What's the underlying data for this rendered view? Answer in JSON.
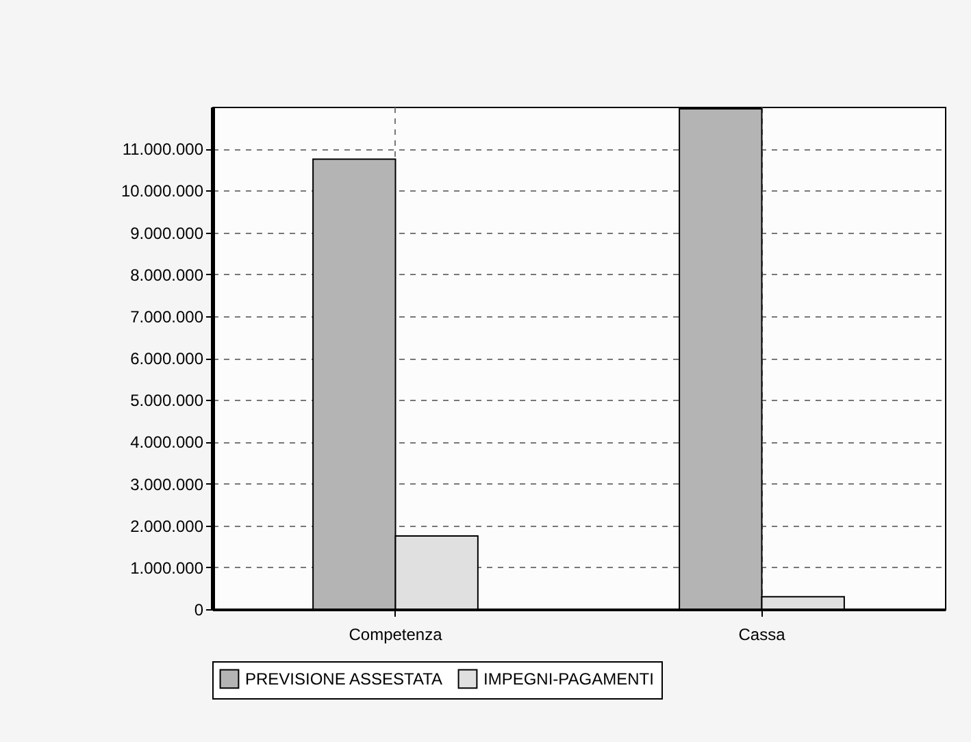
{
  "chart_data": {
    "type": "bar",
    "categories": [
      "Competenza",
      "Cassa"
    ],
    "series": [
      {
        "name": "PREVISIONE ASSESTATA",
        "color": "#b4b4b4",
        "values": [
          10750000,
          11950000
        ]
      },
      {
        "name": "IMPEGNI-PAGAMENTI",
        "color": "#e0e0e0",
        "values": [
          1750000,
          300000
        ]
      }
    ],
    "ylim": [
      0,
      12000000
    ],
    "yticks": [
      0,
      {
        "value": 1000000,
        "label": "1.000.000"
      },
      {
        "value": 2000000,
        "label": "2.000.000"
      },
      {
        "value": 3000000,
        "label": "3.000.000"
      },
      {
        "value": 4000000,
        "label": "4.000.000"
      },
      {
        "value": 5000000,
        "label": "5.000.000"
      },
      {
        "value": 6000000,
        "label": "6.000.000"
      },
      {
        "value": 7000000,
        "label": "7.000.000"
      },
      {
        "value": 8000000,
        "label": "8.000.000"
      },
      {
        "value": 9000000,
        "label": "9.000.000"
      },
      {
        "value": 10000000,
        "label": "10.000.000"
      },
      {
        "value": 11000000,
        "label": "11.000.000"
      }
    ],
    "grid": true,
    "legend": "bottom"
  }
}
